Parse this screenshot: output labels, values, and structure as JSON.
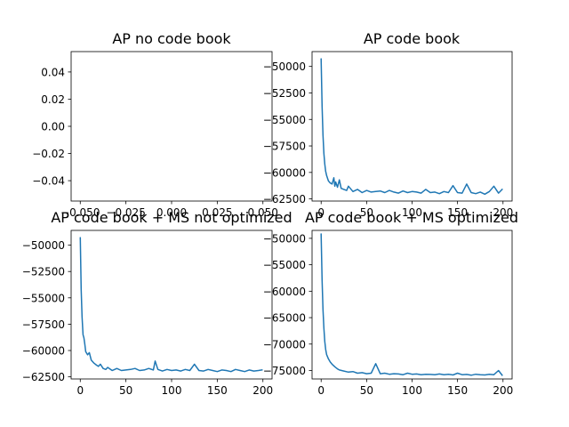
{
  "chart_data": [
    {
      "type": "line",
      "title": "AP no code book",
      "xlim": [
        -0.055,
        0.055
      ],
      "ylim": [
        -0.055,
        0.055
      ],
      "xticks": [
        -0.05,
        -0.025,
        0.0,
        0.025,
        0.05
      ],
      "xtick_labels": [
        "−0.050",
        "−0.025",
        "0.000",
        "0.025",
        "0.050"
      ],
      "yticks": [
        0.04,
        0.02,
        0.0,
        -0.02,
        -0.04
      ],
      "ytick_labels": [
        "0.04",
        "0.02",
        "0.00",
        "−0.02",
        "−0.04"
      ],
      "series": [
        {
          "color": "#1f77b4",
          "x": [],
          "y": []
        }
      ]
    },
    {
      "type": "line",
      "title": "AP code book",
      "xlim": [
        -10,
        210
      ],
      "ylim": [
        -62700,
        -48600
      ],
      "xticks": [
        0,
        50,
        100,
        150,
        200
      ],
      "xtick_labels": [
        "0",
        "50",
        "100",
        "150",
        "200"
      ],
      "yticks": [
        -50000,
        -52500,
        -55000,
        -57500,
        -60000,
        -62500
      ],
      "ytick_labels": [
        "−50000",
        "−52500",
        "−55000",
        "−57500",
        "−60000",
        "−62500"
      ],
      "series": [
        {
          "color": "#1f77b4",
          "x": [
            0,
            1,
            2,
            3,
            4,
            5,
            6,
            8,
            10,
            12,
            14,
            15,
            16,
            18,
            20,
            22,
            25,
            28,
            30,
            35,
            40,
            45,
            50,
            55,
            60,
            65,
            70,
            75,
            80,
            85,
            90,
            95,
            100,
            105,
            110,
            115,
            120,
            125,
            130,
            135,
            140,
            145,
            150,
            155,
            160,
            165,
            170,
            175,
            180,
            185,
            190,
            195,
            199
          ],
          "y": [
            -49300,
            -53800,
            -56500,
            -58200,
            -59200,
            -59900,
            -60300,
            -60800,
            -61000,
            -61100,
            -60500,
            -61300,
            -60900,
            -61400,
            -60700,
            -61500,
            -61600,
            -61700,
            -61300,
            -61800,
            -61600,
            -61900,
            -61700,
            -61850,
            -61800,
            -61750,
            -61900,
            -61700,
            -61850,
            -61950,
            -61750,
            -61900,
            -61800,
            -61850,
            -61950,
            -61600,
            -61900,
            -61850,
            -62000,
            -61800,
            -61900,
            -61250,
            -61900,
            -61950,
            -61100,
            -61900,
            -62000,
            -61850,
            -62050,
            -61800,
            -61300,
            -61950,
            -61600
          ]
        }
      ]
    },
    {
      "type": "line",
      "title": "AP code book + MS not optimized",
      "xlim": [
        -10,
        210
      ],
      "ylim": [
        -62700,
        -48600
      ],
      "xticks": [
        0,
        50,
        100,
        150,
        200
      ],
      "xtick_labels": [
        "0",
        "50",
        "100",
        "150",
        "200"
      ],
      "yticks": [
        -50000,
        -52500,
        -55000,
        -57500,
        -60000,
        -62500
      ],
      "ytick_labels": [
        "−50000",
        "−52500",
        "−55000",
        "−57500",
        "−60000",
        "−62500"
      ],
      "series": [
        {
          "color": "#1f77b4",
          "x": [
            0,
            1,
            2,
            3,
            4,
            5,
            6,
            8,
            10,
            12,
            15,
            18,
            20,
            22,
            25,
            28,
            30,
            35,
            40,
            45,
            50,
            55,
            60,
            65,
            70,
            75,
            80,
            82,
            85,
            90,
            95,
            100,
            105,
            110,
            115,
            120,
            125,
            130,
            135,
            140,
            145,
            150,
            155,
            160,
            165,
            170,
            175,
            180,
            185,
            190,
            195,
            199
          ],
          "y": [
            -49300,
            -54200,
            -56800,
            -58500,
            -58800,
            -59400,
            -60100,
            -60400,
            -60200,
            -60900,
            -61200,
            -61400,
            -61500,
            -61300,
            -61700,
            -61800,
            -61600,
            -61900,
            -61700,
            -61900,
            -61850,
            -61800,
            -61700,
            -61900,
            -61850,
            -61700,
            -61850,
            -61000,
            -61800,
            -61950,
            -61800,
            -61900,
            -61850,
            -61950,
            -61800,
            -61900,
            -61300,
            -61900,
            -61950,
            -61800,
            -61900,
            -62000,
            -61850,
            -61900,
            -62000,
            -61800,
            -61900,
            -62000,
            -61850,
            -61950,
            -61900,
            -61850
          ]
        }
      ]
    },
    {
      "type": "line",
      "title": "AP code book + MS optimized",
      "xlim": [
        -10,
        210
      ],
      "ylim": [
        -76600,
        -48500
      ],
      "xticks": [
        0,
        50,
        100,
        150,
        200
      ],
      "xtick_labels": [
        "0",
        "50",
        "100",
        "150",
        "200"
      ],
      "yticks": [
        -50000,
        -55000,
        -60000,
        -65000,
        -70000,
        -75000
      ],
      "ytick_labels": [
        "−50000",
        "−55000",
        "−60000",
        "−65000",
        "−70000",
        "−75000"
      ],
      "series": [
        {
          "color": "#1f77b4",
          "x": [
            0,
            1,
            2,
            3,
            4,
            5,
            6,
            8,
            10,
            12,
            15,
            18,
            20,
            25,
            30,
            35,
            40,
            45,
            50,
            55,
            60,
            65,
            70,
            75,
            80,
            85,
            90,
            95,
            100,
            105,
            110,
            115,
            120,
            125,
            130,
            135,
            140,
            145,
            150,
            155,
            160,
            165,
            170,
            175,
            180,
            185,
            190,
            195,
            199
          ],
          "y": [
            -49200,
            -58000,
            -63500,
            -67000,
            -69500,
            -71000,
            -72000,
            -72800,
            -73400,
            -73800,
            -74300,
            -74700,
            -74900,
            -75100,
            -75300,
            -75200,
            -75500,
            -75400,
            -75600,
            -75500,
            -73700,
            -75600,
            -75500,
            -75700,
            -75600,
            -75650,
            -75800,
            -75500,
            -75700,
            -75650,
            -75800,
            -75700,
            -75750,
            -75800,
            -75650,
            -75800,
            -75700,
            -75850,
            -75500,
            -75800,
            -75750,
            -75900,
            -75700,
            -75800,
            -75850,
            -75700,
            -75800,
            -75000,
            -75900
          ]
        }
      ]
    }
  ]
}
